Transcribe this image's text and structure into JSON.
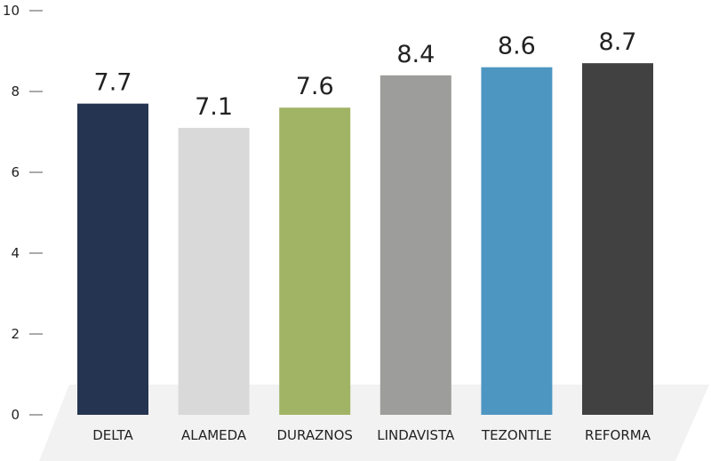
{
  "chart_data": {
    "type": "bar",
    "title": "",
    "xlabel": "",
    "ylabel": "",
    "ylim": [
      0,
      10
    ],
    "yticks": [
      0,
      2,
      4,
      6,
      8,
      10
    ],
    "grid": false,
    "categories": [
      "DELTA",
      "ALAMEDA",
      "DURAZNOS",
      "LINDAVISTA",
      "TEZONTLE",
      "REFORMA"
    ],
    "values": [
      7.7,
      7.1,
      7.6,
      8.4,
      8.6,
      8.7
    ],
    "data_labels": [
      "7.7",
      "7.1",
      "7.6",
      "8.4",
      "8.6",
      "8.7"
    ],
    "colors": [
      "#253551",
      "#d9d9d9",
      "#a1b465",
      "#9d9d9b",
      "#4e96c2",
      "#414141"
    ],
    "floor_color": "#f2f2f2"
  }
}
